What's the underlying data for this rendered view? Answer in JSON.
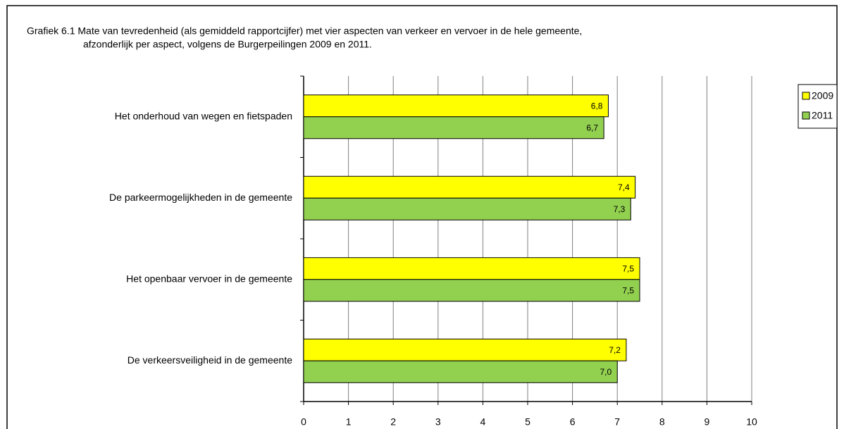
{
  "chart_data": {
    "type": "bar",
    "orientation": "horizontal",
    "title": [
      "Grafiek 6.1 Mate van tevredenheid (als gemiddeld rapportcijfer) met vier aspecten van verkeer en vervoer in de hele gemeente,",
      "afzonderlijk per aspect, volgens de Burgerpeilingen 2009 en 2011."
    ],
    "categories": [
      "Het onderhoud van wegen en fietspaden",
      "De parkeermogelijkheden in de gemeente",
      "Het openbaar vervoer in de gemeente",
      "De verkeersveiligheid in de gemeente"
    ],
    "series": [
      {
        "name": "2009",
        "color": "#ffff00",
        "values": [
          6.8,
          7.4,
          7.5,
          7.2
        ],
        "value_labels": [
          "6,8",
          "7,4",
          "7,5",
          "7,2"
        ]
      },
      {
        "name": "2011",
        "color": "#92d050",
        "values": [
          6.7,
          7.3,
          7.5,
          7.0
        ],
        "value_labels": [
          "6,7",
          "7,3",
          "7,5",
          "7,0"
        ]
      }
    ],
    "xlim": [
      0,
      10
    ],
    "xticks": [
      0,
      1,
      2,
      3,
      4,
      5,
      6,
      7,
      8,
      9,
      10
    ],
    "grid": true,
    "legend": "top-right"
  }
}
